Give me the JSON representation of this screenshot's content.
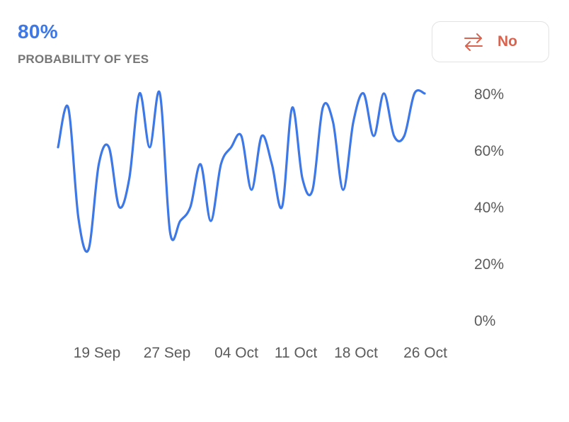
{
  "header": {
    "probability": "80%",
    "probability_label": "PROBABILITY OF YES"
  },
  "switch_button": {
    "label": "No",
    "icon": "swap-arrows-icon",
    "color": "#d9634e"
  },
  "colors": {
    "line": "#3d78e6",
    "accent": "#3d78e6",
    "axis_text": "#5b5b5b"
  },
  "chart_data": {
    "type": "line",
    "ylim": [
      0,
      80
    ],
    "y_ticks": [
      0,
      20,
      40,
      60,
      80
    ],
    "y_tick_labels": [
      "0%",
      "20%",
      "40%",
      "60%",
      "80%"
    ],
    "x_tick_labels": [
      "19 Sep",
      "27 Sep",
      "04 Oct",
      "11 Oct",
      "18 Oct",
      "26 Oct"
    ],
    "grid": false,
    "series": [
      {
        "values": [
          61,
          75,
          36,
          25,
          55,
          61,
          40,
          50,
          80,
          61,
          80,
          31,
          35,
          40,
          55,
          35,
          55,
          61,
          65,
          46,
          65,
          55,
          40,
          75,
          50,
          46,
          75,
          70,
          46,
          70,
          80,
          65,
          80,
          65,
          65,
          80,
          80
        ]
      }
    ]
  }
}
